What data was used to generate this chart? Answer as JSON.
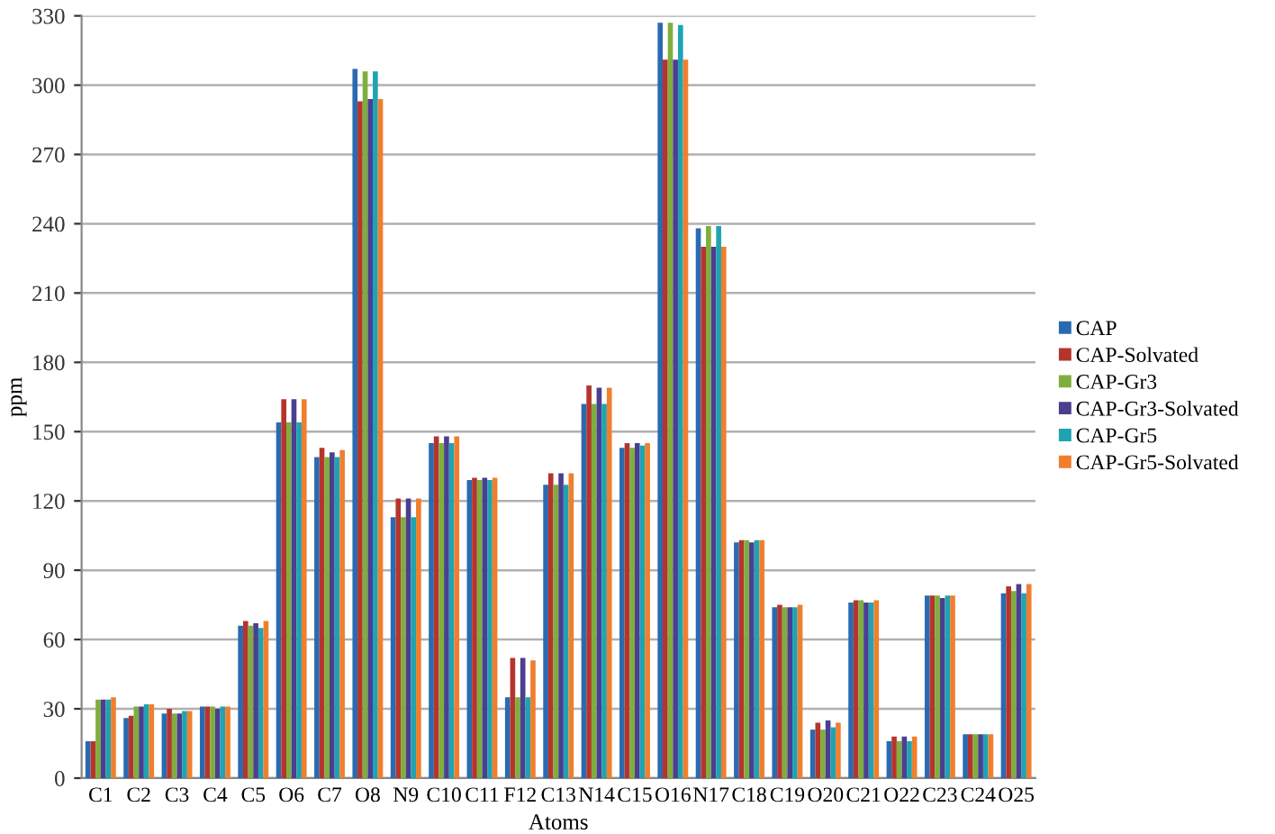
{
  "chart_data": {
    "type": "bar",
    "xlabel": "Atoms",
    "ylabel": "ppm",
    "categories": [
      "C1",
      "C2",
      "C3",
      "C4",
      "C5",
      "O6",
      "C7",
      "O8",
      "N9",
      "C10",
      "C11",
      "F12",
      "C13",
      "N14",
      "C15",
      "O16",
      "N17",
      "C18",
      "C19",
      "O20",
      "C21",
      "O22",
      "C23",
      "C24",
      "O25"
    ],
    "series": [
      {
        "name": "CAP",
        "color": "#2a6ab1",
        "values": [
          16,
          26,
          28,
          31,
          66,
          154,
          139,
          307,
          113,
          145,
          129,
          35,
          127,
          162,
          143,
          327,
          238,
          102,
          74,
          21,
          76,
          16,
          79,
          19,
          80
        ]
      },
      {
        "name": "CAP-Solvated",
        "color": "#b5352d",
        "values": [
          16,
          27,
          30,
          31,
          68,
          164,
          143,
          293,
          121,
          148,
          130,
          52,
          132,
          170,
          145,
          311,
          230,
          103,
          75,
          24,
          77,
          18,
          79,
          19,
          83
        ]
      },
      {
        "name": "CAP-Gr3",
        "color": "#7fae3e",
        "values": [
          34,
          31,
          28,
          31,
          66,
          154,
          139,
          306,
          113,
          145,
          129,
          35,
          127,
          162,
          143,
          327,
          239,
          103,
          74,
          21,
          77,
          16,
          79,
          19,
          81
        ]
      },
      {
        "name": "CAP-Gr3-Solvated",
        "color": "#4b3f8f",
        "values": [
          34,
          31,
          28,
          30,
          67,
          164,
          141,
          294,
          121,
          148,
          130,
          52,
          132,
          169,
          145,
          311,
          230,
          102,
          74,
          25,
          76,
          18,
          78,
          19,
          84
        ]
      },
      {
        "name": "CAP-Gr5",
        "color": "#1fa3b3",
        "values": [
          34,
          32,
          29,
          31,
          65,
          154,
          139,
          306,
          113,
          145,
          129,
          35,
          127,
          162,
          144,
          326,
          239,
          103,
          74,
          22,
          76,
          16,
          79,
          19,
          80
        ]
      },
      {
        "name": "CAP-Gr5-Solvated",
        "color": "#f07f2d",
        "values": [
          35,
          32,
          29,
          31,
          68,
          164,
          142,
          294,
          121,
          148,
          130,
          51,
          132,
          169,
          145,
          311,
          230,
          103,
          75,
          24,
          77,
          18,
          79,
          19,
          84
        ]
      }
    ],
    "ylim": [
      0,
      330
    ],
    "yticks": [
      0,
      30,
      60,
      90,
      120,
      150,
      180,
      210,
      240,
      270,
      300,
      330
    ],
    "grid": "y",
    "legend": "right"
  }
}
